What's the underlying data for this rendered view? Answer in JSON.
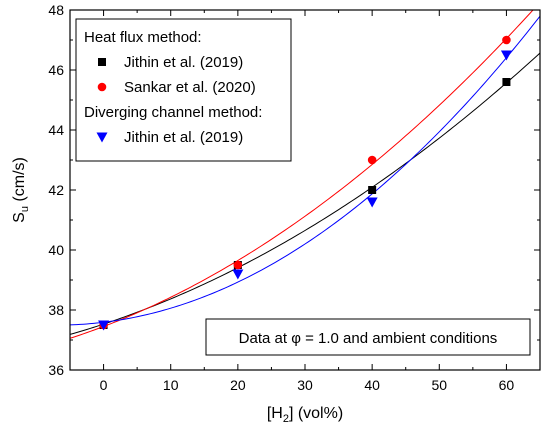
{
  "chart_data": {
    "type": "scatter",
    "xlabel": "[H2] (vol%)",
    "ylabel": "Su (cm/s)",
    "xlim": [
      -5,
      65
    ],
    "ylim": [
      36,
      48
    ],
    "x_ticks": [
      0,
      10,
      20,
      30,
      40,
      50,
      60
    ],
    "y_ticks": [
      36,
      38,
      40,
      42,
      44,
      46,
      48
    ],
    "legend": {
      "placement": "top-left",
      "groups": [
        {
          "heading": "Heat flux method:",
          "series_indices": [
            0,
            1
          ]
        },
        {
          "heading": "Diverging channel method:",
          "series_indices": [
            2
          ]
        }
      ]
    },
    "series": [
      {
        "name": "Jithin et al. (2019)",
        "color": "#000000",
        "marker": "square",
        "x": [
          0,
          20,
          40,
          60
        ],
        "y": [
          37.5,
          39.5,
          42.0,
          45.6
        ]
      },
      {
        "name": "Sankar et al. (2020)",
        "color": "#ff0000",
        "marker": "circle",
        "x": [
          0,
          20,
          40,
          60
        ],
        "y": [
          37.5,
          39.5,
          43.0,
          47.0
        ]
      },
      {
        "name": "Jithin et al. (2019)",
        "color": "#0000ff",
        "marker": "triangle-down",
        "x": [
          0,
          20,
          40,
          60
        ],
        "y": [
          37.5,
          39.2,
          41.6,
          46.5
        ]
      }
    ],
    "annotation": "Data at φ = 1.0 and ambient conditions"
  }
}
